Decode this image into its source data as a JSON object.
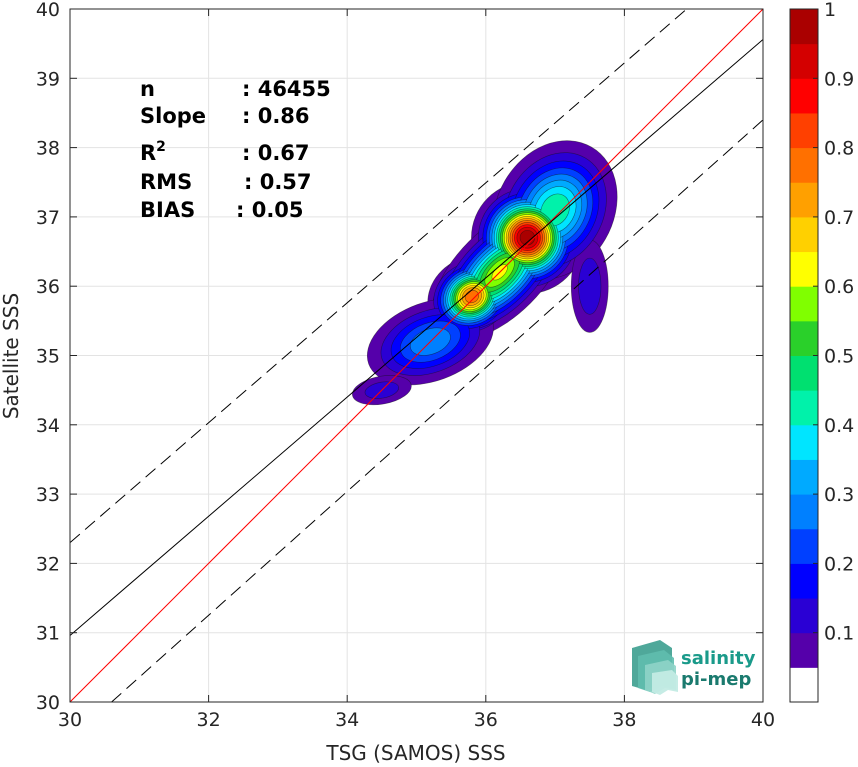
{
  "chart_data": {
    "type": "heatmap",
    "xlabel": "TSG (SAMOS) SSS",
    "ylabel": "Satellite SSS",
    "xlim": [
      30,
      40
    ],
    "ylim": [
      30,
      40
    ],
    "x_ticks": [
      "30",
      "32",
      "34",
      "36",
      "38",
      "40"
    ],
    "y_ticks": [
      "30",
      "31",
      "32",
      "33",
      "34",
      "35",
      "36",
      "37",
      "38",
      "39",
      "40"
    ],
    "grid": true,
    "stats": [
      {
        "label": "n",
        "value": ": 46455"
      },
      {
        "label": "Slope",
        "value": ": 0.86"
      },
      {
        "label": "R",
        "sup": "2",
        "value": ": 0.67"
      },
      {
        "label": "RMS",
        "value": ": 0.57"
      },
      {
        "label": "BIAS",
        "value": ": 0.05"
      }
    ],
    "lines": [
      {
        "name": "one-to-one",
        "style": "solid",
        "color": "#ff0000",
        "x": [
          30,
          40
        ],
        "y": [
          30,
          40
        ]
      },
      {
        "name": "regression",
        "style": "solid",
        "color": "#000000",
        "x": [
          30,
          40
        ],
        "y": [
          30.96,
          39.56
        ]
      },
      {
        "name": "upper-bound",
        "style": "dashed",
        "color": "#000000",
        "x": [
          30,
          38.9
        ],
        "y": [
          32.3,
          40
        ]
      },
      {
        "name": "lower-bound",
        "style": "dashed",
        "color": "#000000",
        "x": [
          30.6,
          40
        ],
        "y": [
          30,
          38.4
        ]
      }
    ],
    "density_peaks": [
      {
        "x": 36.6,
        "y": 36.7,
        "level": 1.0,
        "sx": 0.33,
        "sy": 0.33,
        "rot": 45
      },
      {
        "x": 35.8,
        "y": 35.85,
        "level": 0.8,
        "sx": 0.28,
        "sy": 0.24,
        "rot": 30
      },
      {
        "x": 36.2,
        "y": 36.2,
        "level": 0.62,
        "sx": 0.55,
        "sy": 0.28,
        "rot": 45
      },
      {
        "x": 37.0,
        "y": 37.1,
        "level": 0.45,
        "sx": 0.5,
        "sy": 0.4,
        "rot": 60
      },
      {
        "x": 35.2,
        "y": 35.2,
        "level": 0.3,
        "sx": 0.5,
        "sy": 0.3,
        "rot": 20
      },
      {
        "x": 34.5,
        "y": 34.5,
        "level": 0.14,
        "sx": 0.3,
        "sy": 0.14,
        "rot": 10
      },
      {
        "x": 37.5,
        "y": 36.0,
        "level": 0.15,
        "sx": 0.18,
        "sy": 0.45,
        "rot": 0
      }
    ],
    "colorbar": {
      "ticks": [
        "0.1",
        "0.2",
        "0.3",
        "0.4",
        "0.5",
        "0.6",
        "0.7",
        "0.8",
        "0.9",
        "1"
      ],
      "range": [
        0,
        1
      ],
      "levels": 19,
      "colors": [
        "#ffffff",
        "#5500aa",
        "#2a00d4",
        "#0000ff",
        "#0040ff",
        "#0080ff",
        "#00aaff",
        "#00e5ff",
        "#00f2aa",
        "#00e070",
        "#2ad02a",
        "#80ff00",
        "#ffff00",
        "#ffd000",
        "#ffa000",
        "#ff7000",
        "#ff4000",
        "#ff0000",
        "#d40000",
        "#aa0000"
      ]
    },
    "logo": {
      "line1": "salinity",
      "line2": "pi-mep"
    }
  }
}
